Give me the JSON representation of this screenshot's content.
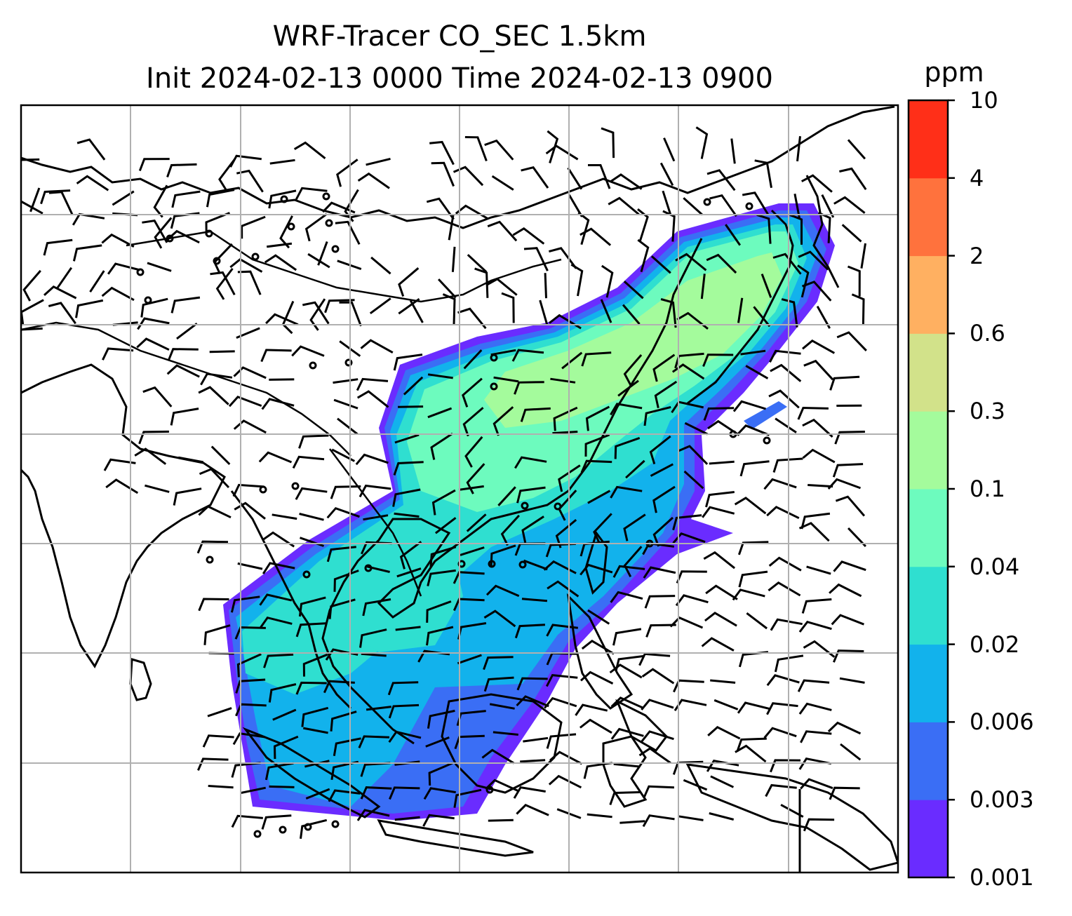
{
  "title": {
    "line1": "WRF-Tracer CO_SEC 1.5km",
    "line2": "Init 2024-02-13 0000 Time 2024-02-13 0900"
  },
  "colorbar": {
    "unit": "ppm",
    "levels": [
      "0.001",
      "0.003",
      "0.006",
      "0.02",
      "0.04",
      "0.1",
      "0.3",
      "0.6",
      "2",
      "4",
      "10"
    ],
    "colors": [
      "#6a2cff",
      "#3a6ef5",
      "#12b2ec",
      "#2fdfd0",
      "#6dfbbe",
      "#a4fb9c",
      "#d2e28a",
      "#ffb061",
      "#ff723d",
      "#ff2f18"
    ]
  },
  "map": {
    "background": "#ffffff",
    "gridline_color": "#b0b0b0",
    "coastline_color": "#000000",
    "barb_color": "#000000",
    "field": "CO_SEC tracer concentration with wind barbs"
  }
}
